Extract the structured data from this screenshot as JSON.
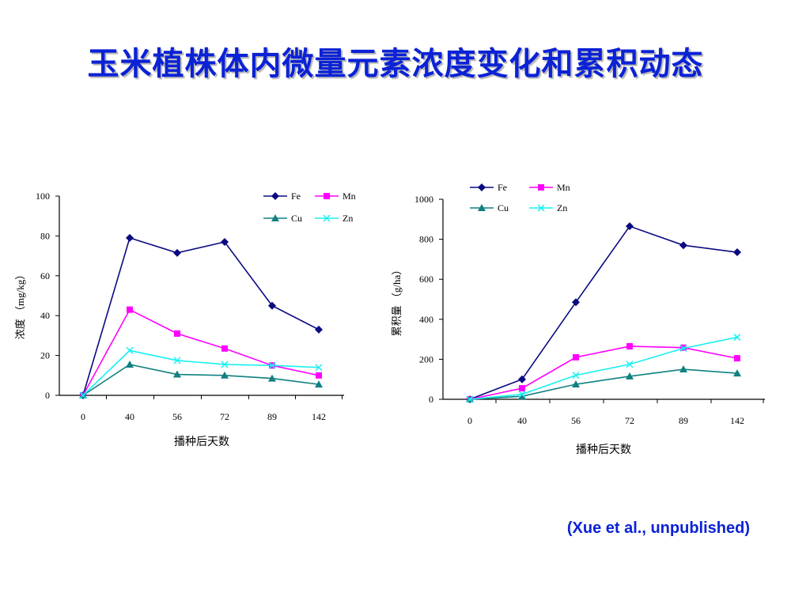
{
  "slide": {
    "title": "玉米植株体内微量元素浓度变化和累积动态",
    "citation": "(Xue et al., unpublished)"
  },
  "colors": {
    "title": "#0b22d6",
    "Fe": "#0a0a82",
    "Mn": "#ff00ff",
    "Cu": "#108080",
    "Zn": "#19f0f0"
  },
  "chart_data": [
    {
      "type": "line",
      "categories": [
        "0",
        "40",
        "56",
        "72",
        "89",
        "142"
      ],
      "ylabel": "浓度 （mg/kg）",
      "xlabel": "播种后天数",
      "ylim": [
        0,
        100
      ],
      "yticks": [
        "0",
        "20",
        "40",
        "60",
        "80",
        "100"
      ],
      "legend_position": "top-right",
      "series": [
        {
          "name": "Fe",
          "values": [
            0,
            79,
            71.5,
            77,
            45,
            33
          ]
        },
        {
          "name": "Mn",
          "values": [
            0,
            43,
            31,
            23.5,
            15,
            10
          ]
        },
        {
          "name": "Cu",
          "values": [
            0,
            15.5,
            10.5,
            10,
            8.5,
            5.5
          ]
        },
        {
          "name": "Zn",
          "values": [
            0,
            22.5,
            17.5,
            15.5,
            15,
            14
          ]
        }
      ]
    },
    {
      "type": "line",
      "categories": [
        "0",
        "40",
        "56",
        "72",
        "89",
        "142"
      ],
      "ylabel": "累积量 （g/ha）",
      "xlabel": "播种后天数",
      "ylim": [
        0,
        1000
      ],
      "yticks": [
        "0",
        "200",
        "400",
        "600",
        "800",
        "1000"
      ],
      "legend_position": "top-left",
      "series": [
        {
          "name": "Fe",
          "values": [
            0,
            100,
            485,
            865,
            770,
            735
          ]
        },
        {
          "name": "Mn",
          "values": [
            0,
            55,
            210,
            265,
            258,
            205
          ]
        },
        {
          "name": "Cu",
          "values": [
            0,
            15,
            75,
            115,
            150,
            130
          ]
        },
        {
          "name": "Zn",
          "values": [
            0,
            25,
            120,
            175,
            255,
            310
          ]
        }
      ]
    }
  ]
}
